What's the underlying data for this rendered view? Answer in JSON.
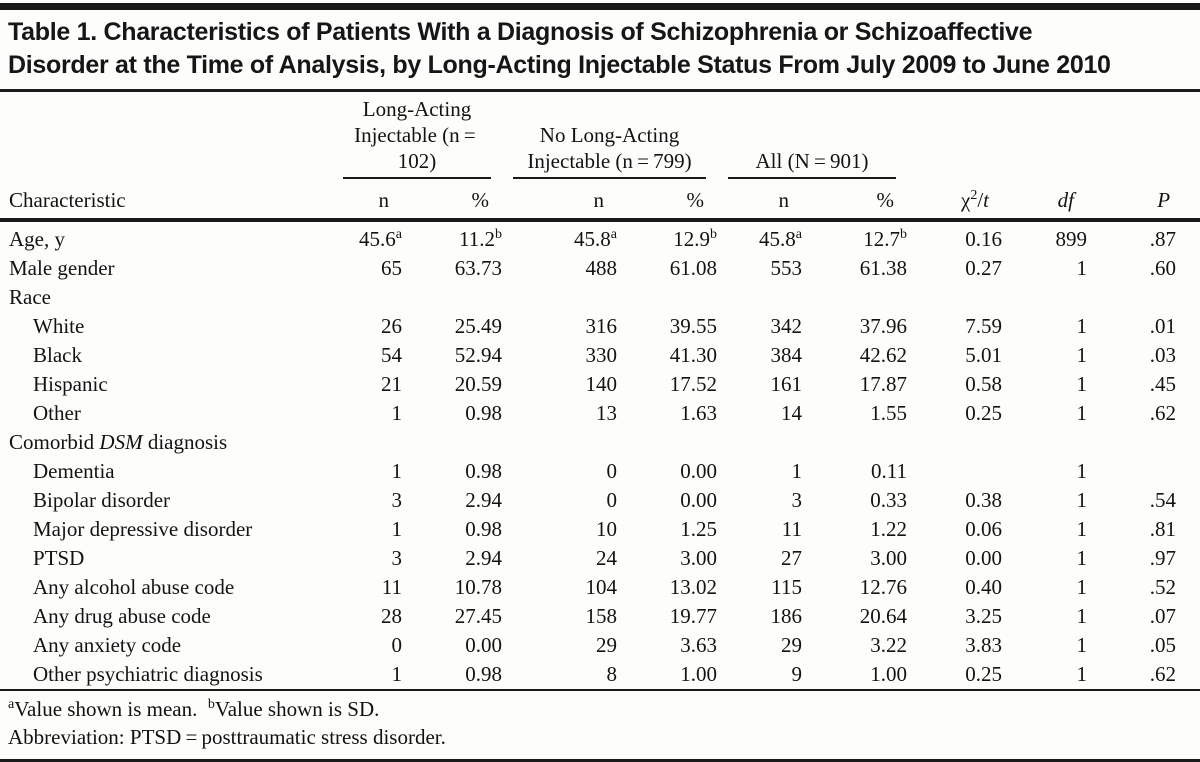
{
  "table": {
    "title_line1": "Table 1. Characteristics of Patients With a Diagnosis of Schizophrenia or Schizoaffective",
    "title_line2": "Disorder at the Time of Analysis, by Long-Acting Injectable Status From July 2009 to June 2010",
    "col_groups": [
      {
        "label": "Long-Acting Injectable (n = 102)"
      },
      {
        "label": "No Long-Acting Injectable (n = 799)"
      },
      {
        "label": "All (N = 901)"
      }
    ],
    "col_headers": {
      "characteristic": "Characteristic",
      "n": "n",
      "pct": "%",
      "chi": "χ^2/*t*",
      "df": "*df*",
      "p": "*P*"
    },
    "rows": [
      {
        "label": "Age, y",
        "indent": false,
        "section": false,
        "values": [
          "45.6^a",
          "11.2^b",
          "45.8^a",
          "12.9^b",
          "45.8^a",
          "12.7^b",
          "0.16",
          "899",
          ".87"
        ]
      },
      {
        "label": "Male gender",
        "indent": false,
        "section": false,
        "values": [
          "65",
          "63.73",
          "488",
          "61.08",
          "553",
          "61.38",
          "0.27",
          "1",
          ".60"
        ]
      },
      {
        "label": "Race",
        "indent": false,
        "section": true,
        "values": []
      },
      {
        "label": "White",
        "indent": true,
        "section": false,
        "values": [
          "26",
          "25.49",
          "316",
          "39.55",
          "342",
          "37.96",
          "7.59",
          "1",
          ".01"
        ]
      },
      {
        "label": "Black",
        "indent": true,
        "section": false,
        "values": [
          "54",
          "52.94",
          "330",
          "41.30",
          "384",
          "42.62",
          "5.01",
          "1",
          ".03"
        ]
      },
      {
        "label": "Hispanic",
        "indent": true,
        "section": false,
        "values": [
          "21",
          "20.59",
          "140",
          "17.52",
          "161",
          "17.87",
          "0.58",
          "1",
          ".45"
        ]
      },
      {
        "label": "Other",
        "indent": true,
        "section": false,
        "values": [
          "1",
          "0.98",
          "13",
          "1.63",
          "14",
          "1.55",
          "0.25",
          "1",
          ".62"
        ]
      },
      {
        "label": "Comorbid *DSM* diagnosis",
        "indent": false,
        "section": true,
        "values": []
      },
      {
        "label": "Dementia",
        "indent": true,
        "section": false,
        "values": [
          "1",
          "0.98",
          "0",
          "0.00",
          "1",
          "0.11",
          "",
          "1",
          ""
        ]
      },
      {
        "label": "Bipolar disorder",
        "indent": true,
        "section": false,
        "values": [
          "3",
          "2.94",
          "0",
          "0.00",
          "3",
          "0.33",
          "0.38",
          "1",
          ".54"
        ]
      },
      {
        "label": "Major depressive disorder",
        "indent": true,
        "section": false,
        "values": [
          "1",
          "0.98",
          "10",
          "1.25",
          "11",
          "1.22",
          "0.06",
          "1",
          ".81"
        ]
      },
      {
        "label": "PTSD",
        "indent": true,
        "section": false,
        "values": [
          "3",
          "2.94",
          "24",
          "3.00",
          "27",
          "3.00",
          "0.00",
          "1",
          ".97"
        ]
      },
      {
        "label": "Any alcohol abuse code",
        "indent": true,
        "section": false,
        "values": [
          "11",
          "10.78",
          "104",
          "13.02",
          "115",
          "12.76",
          "0.40",
          "1",
          ".52"
        ]
      },
      {
        "label": "Any drug abuse code",
        "indent": true,
        "section": false,
        "values": [
          "28",
          "27.45",
          "158",
          "19.77",
          "186",
          "20.64",
          "3.25",
          "1",
          ".07"
        ]
      },
      {
        "label": "Any anxiety code",
        "indent": true,
        "section": false,
        "values": [
          "0",
          "0.00",
          "29",
          "3.63",
          "29",
          "3.22",
          "3.83",
          "1",
          ".05"
        ]
      },
      {
        "label": "Other psychiatric diagnosis",
        "indent": true,
        "section": false,
        "values": [
          "1",
          "0.98",
          "8",
          "1.00",
          "9",
          "1.00",
          "0.25",
          "1",
          ".62"
        ]
      }
    ],
    "footnotes": [
      "^aValue shown is mean. ^bValue shown is SD.",
      "Abbreviation: PTSD = posttraumatic stress disorder."
    ]
  },
  "colors": {
    "text": "#131313",
    "rule": "#1a1a1a",
    "background": "#fdfdfb"
  }
}
